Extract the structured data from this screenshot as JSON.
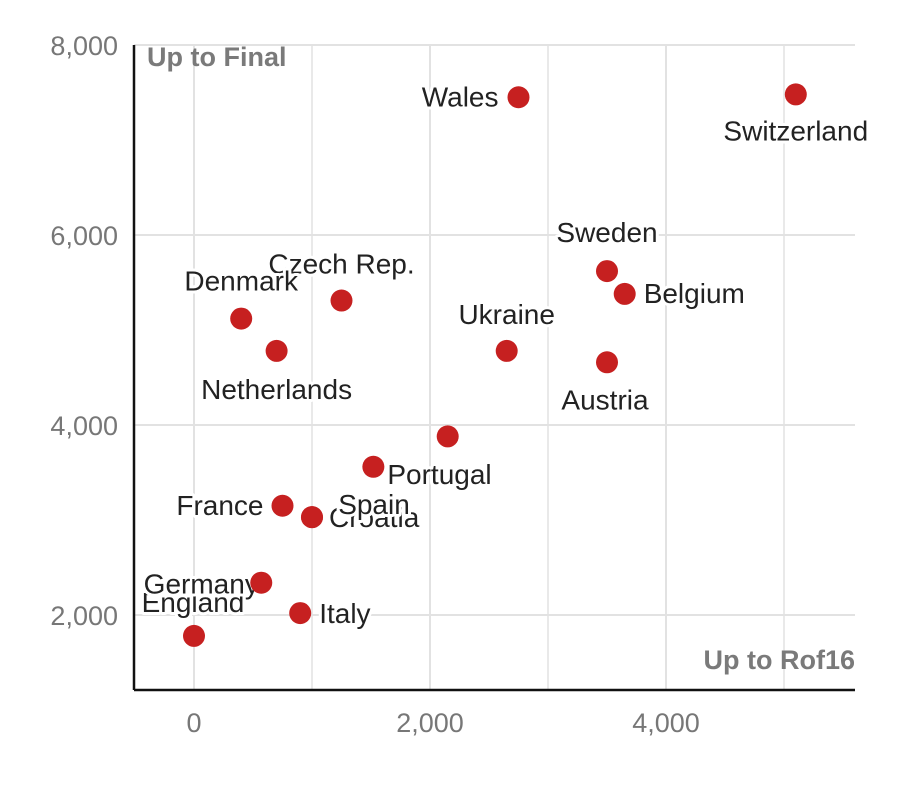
{
  "chart_data": {
    "type": "scatter",
    "title": "",
    "xlabel": "",
    "ylabel": "",
    "xlim": [
      -500,
      5600
    ],
    "ylim": [
      1200,
      8000
    ],
    "x_ticks": [
      0,
      2000,
      4000
    ],
    "x_tick_labels": [
      "0",
      "2,000",
      "4,000"
    ],
    "y_ticks": [
      2000,
      4000,
      6000,
      8000
    ],
    "y_tick_labels": [
      "2,000",
      "4,000",
      "6,000",
      "8,000"
    ],
    "grid": true,
    "corner_labels": {
      "y_axis": "Up to Final",
      "x_axis": "Up to Rof16"
    },
    "colors": {
      "point": "#c62020"
    },
    "points": [
      {
        "label": "Wales",
        "x": 2750,
        "y": 7450
      },
      {
        "label": "Switzerland",
        "x": 5100,
        "y": 7480
      },
      {
        "label": "Sweden",
        "x": 3500,
        "y": 5620
      },
      {
        "label": "Belgium",
        "x": 3650,
        "y": 5380
      },
      {
        "label": "Ukraine",
        "x": 2650,
        "y": 4780
      },
      {
        "label": "Austria",
        "x": 3500,
        "y": 4660
      },
      {
        "label": "Czech Rep.",
        "x": 1250,
        "y": 5310
      },
      {
        "label": "Denmark",
        "x": 400,
        "y": 5120
      },
      {
        "label": "Netherlands",
        "x": 700,
        "y": 4780
      },
      {
        "label": "",
        "x": 2150,
        "y": 3880
      },
      {
        "label": "Portugal",
        "x": 1520,
        "y": 3560
      },
      {
        "label": "France",
        "x": 750,
        "y": 3150
      },
      {
        "label": "Croatia",
        "x": 1000,
        "y": 3030
      },
      {
        "label": "Spain",
        "x": 1000,
        "y": 3030
      },
      {
        "label": "Germany",
        "x": 570,
        "y": 2340
      },
      {
        "label": "England",
        "x": 0,
        "y": 1780
      },
      {
        "label": "Italy",
        "x": 900,
        "y": 2020
      }
    ]
  }
}
